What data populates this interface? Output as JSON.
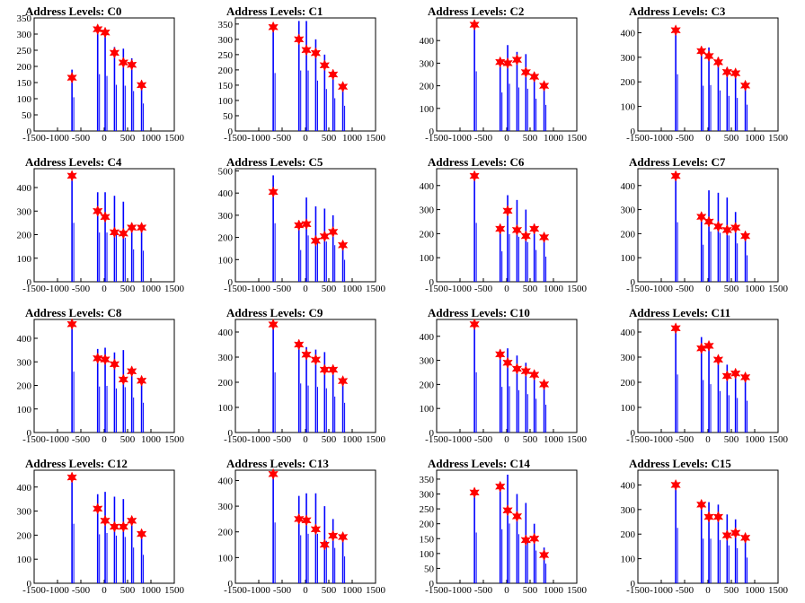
{
  "colors": {
    "histogram": "#0000ff",
    "peak_marker": "#ff0000",
    "axis": "#000000"
  },
  "x_ticks": [
    -1500,
    -1000,
    -500,
    0,
    500,
    1000,
    1500
  ],
  "x_range": [
    -1500,
    1500
  ],
  "chart_data": [
    {
      "type": "bar",
      "title": "Address Levels: C0",
      "ylim": [
        0,
        350
      ],
      "yticks": [
        0,
        50,
        100,
        150,
        200,
        250,
        300,
        350
      ],
      "peaks": [
        {
          "x": -690,
          "y": 165
        },
        {
          "x": -140,
          "y": 315
        },
        {
          "x": 20,
          "y": 305
        },
        {
          "x": 220,
          "y": 242
        },
        {
          "x": 410,
          "y": 212
        },
        {
          "x": 590,
          "y": 205
        },
        {
          "x": 800,
          "y": 142
        }
      ],
      "bars": [
        {
          "x": -690,
          "y": 190
        },
        {
          "x": -140,
          "y": 320
        },
        {
          "x": 20,
          "y": 310
        },
        {
          "x": 220,
          "y": 260
        },
        {
          "x": 410,
          "y": 255
        },
        {
          "x": 590,
          "y": 225
        },
        {
          "x": 800,
          "y": 155
        }
      ]
    },
    {
      "type": "bar",
      "title": "Address Levels: C1",
      "ylim": [
        0,
        370
      ],
      "yticks": [
        0,
        50,
        100,
        150,
        200,
        250,
        300,
        350
      ],
      "peaks": [
        {
          "x": -690,
          "y": 340
        },
        {
          "x": -140,
          "y": 300
        },
        {
          "x": 20,
          "y": 265
        },
        {
          "x": 220,
          "y": 255
        },
        {
          "x": 410,
          "y": 215
        },
        {
          "x": 590,
          "y": 185
        },
        {
          "x": 800,
          "y": 145
        }
      ],
      "bars": [
        {
          "x": -690,
          "y": 345
        },
        {
          "x": -140,
          "y": 360
        },
        {
          "x": 20,
          "y": 360
        },
        {
          "x": 220,
          "y": 300
        },
        {
          "x": 410,
          "y": 250
        },
        {
          "x": 590,
          "y": 195
        },
        {
          "x": 800,
          "y": 150
        }
      ]
    },
    {
      "type": "bar",
      "title": "Address Levels: C2",
      "ylim": [
        0,
        500
      ],
      "yticks": [
        0,
        100,
        200,
        300,
        400
      ],
      "peaks": [
        {
          "x": -690,
          "y": 470
        },
        {
          "x": -140,
          "y": 305
        },
        {
          "x": 20,
          "y": 300
        },
        {
          "x": 220,
          "y": 315
        },
        {
          "x": 410,
          "y": 260
        },
        {
          "x": 590,
          "y": 240
        },
        {
          "x": 800,
          "y": 200
        }
      ],
      "bars": [
        {
          "x": -690,
          "y": 480
        },
        {
          "x": -140,
          "y": 310
        },
        {
          "x": 20,
          "y": 380
        },
        {
          "x": 220,
          "y": 350
        },
        {
          "x": 410,
          "y": 340
        },
        {
          "x": 590,
          "y": 260
        },
        {
          "x": 800,
          "y": 210
        }
      ]
    },
    {
      "type": "bar",
      "title": "Address Levels: C3",
      "ylim": [
        0,
        460
      ],
      "yticks": [
        0,
        100,
        200,
        300,
        400
      ],
      "peaks": [
        {
          "x": -690,
          "y": 410
        },
        {
          "x": -140,
          "y": 325
        },
        {
          "x": 20,
          "y": 305
        },
        {
          "x": 220,
          "y": 280
        },
        {
          "x": 410,
          "y": 240
        },
        {
          "x": 590,
          "y": 235
        },
        {
          "x": 800,
          "y": 185
        }
      ],
      "bars": [
        {
          "x": -690,
          "y": 420
        },
        {
          "x": -140,
          "y": 335
        },
        {
          "x": 20,
          "y": 340
        },
        {
          "x": 220,
          "y": 300
        },
        {
          "x": 410,
          "y": 260
        },
        {
          "x": 590,
          "y": 245
        },
        {
          "x": 800,
          "y": 195
        }
      ]
    },
    {
      "type": "bar",
      "title": "Address Levels: C4",
      "ylim": [
        0,
        480
      ],
      "yticks": [
        0,
        100,
        200,
        300,
        400
      ],
      "peaks": [
        {
          "x": -690,
          "y": 450
        },
        {
          "x": -140,
          "y": 300
        },
        {
          "x": 20,
          "y": 275
        },
        {
          "x": 220,
          "y": 210
        },
        {
          "x": 410,
          "y": 205
        },
        {
          "x": 590,
          "y": 230
        },
        {
          "x": 800,
          "y": 230
        }
      ],
      "bars": [
        {
          "x": -690,
          "y": 455
        },
        {
          "x": -140,
          "y": 380
        },
        {
          "x": 20,
          "y": 380
        },
        {
          "x": 220,
          "y": 365
        },
        {
          "x": 410,
          "y": 340
        },
        {
          "x": 590,
          "y": 250
        },
        {
          "x": 800,
          "y": 240
        }
      ]
    },
    {
      "type": "bar",
      "title": "Address Levels: C5",
      "ylim": [
        0,
        510
      ],
      "yticks": [
        0,
        100,
        200,
        300,
        400,
        500
      ],
      "peaks": [
        {
          "x": -690,
          "y": 405
        },
        {
          "x": -140,
          "y": 255
        },
        {
          "x": 20,
          "y": 260
        },
        {
          "x": 220,
          "y": 185
        },
        {
          "x": 410,
          "y": 205
        },
        {
          "x": 590,
          "y": 225
        },
        {
          "x": 800,
          "y": 165
        }
      ],
      "bars": [
        {
          "x": -690,
          "y": 480
        },
        {
          "x": -140,
          "y": 260
        },
        {
          "x": 20,
          "y": 380
        },
        {
          "x": 220,
          "y": 340
        },
        {
          "x": 410,
          "y": 330
        },
        {
          "x": 590,
          "y": 300
        },
        {
          "x": 800,
          "y": 180
        }
      ]
    },
    {
      "type": "bar",
      "title": "Address Levels: C6",
      "ylim": [
        0,
        470
      ],
      "yticks": [
        0,
        100,
        200,
        300,
        400
      ],
      "peaks": [
        {
          "x": -690,
          "y": 440
        },
        {
          "x": -140,
          "y": 220
        },
        {
          "x": 20,
          "y": 295
        },
        {
          "x": 220,
          "y": 215
        },
        {
          "x": 410,
          "y": 190
        },
        {
          "x": 590,
          "y": 220
        },
        {
          "x": 800,
          "y": 185
        }
      ],
      "bars": [
        {
          "x": -690,
          "y": 445
        },
        {
          "x": -140,
          "y": 230
        },
        {
          "x": 20,
          "y": 360
        },
        {
          "x": 220,
          "y": 340
        },
        {
          "x": 410,
          "y": 300
        },
        {
          "x": 590,
          "y": 240
        },
        {
          "x": 800,
          "y": 190
        }
      ]
    },
    {
      "type": "bar",
      "title": "Address Levels: C7",
      "ylim": [
        0,
        470
      ],
      "yticks": [
        0,
        100,
        200,
        300,
        400
      ],
      "peaks": [
        {
          "x": -690,
          "y": 440
        },
        {
          "x": -140,
          "y": 270
        },
        {
          "x": 20,
          "y": 250
        },
        {
          "x": 220,
          "y": 230
        },
        {
          "x": 410,
          "y": 215
        },
        {
          "x": 590,
          "y": 225
        },
        {
          "x": 800,
          "y": 190
        }
      ],
      "bars": [
        {
          "x": -690,
          "y": 450
        },
        {
          "x": -140,
          "y": 280
        },
        {
          "x": 20,
          "y": 380
        },
        {
          "x": 220,
          "y": 370
        },
        {
          "x": 410,
          "y": 350
        },
        {
          "x": 590,
          "y": 290
        },
        {
          "x": 800,
          "y": 200
        }
      ]
    },
    {
      "type": "bar",
      "title": "Address Levels: C8",
      "ylim": [
        0,
        480
      ],
      "yticks": [
        0,
        100,
        200,
        300,
        400
      ],
      "peaks": [
        {
          "x": -690,
          "y": 460
        },
        {
          "x": -140,
          "y": 315
        },
        {
          "x": 20,
          "y": 310
        },
        {
          "x": 220,
          "y": 290
        },
        {
          "x": 410,
          "y": 225
        },
        {
          "x": 590,
          "y": 260
        },
        {
          "x": 800,
          "y": 220
        }
      ],
      "bars": [
        {
          "x": -690,
          "y": 470
        },
        {
          "x": -140,
          "y": 355
        },
        {
          "x": 20,
          "y": 360
        },
        {
          "x": 220,
          "y": 340
        },
        {
          "x": 410,
          "y": 350
        },
        {
          "x": 590,
          "y": 270
        },
        {
          "x": 800,
          "y": 230
        }
      ]
    },
    {
      "type": "bar",
      "title": "Address Levels: C9",
      "ylim": [
        0,
        450
      ],
      "yticks": [
        0,
        100,
        200,
        300,
        400
      ],
      "peaks": [
        {
          "x": -690,
          "y": 430
        },
        {
          "x": -140,
          "y": 350
        },
        {
          "x": 20,
          "y": 310
        },
        {
          "x": 220,
          "y": 290
        },
        {
          "x": 410,
          "y": 250
        },
        {
          "x": 590,
          "y": 250
        },
        {
          "x": 800,
          "y": 205
        }
      ],
      "bars": [
        {
          "x": -690,
          "y": 435
        },
        {
          "x": -140,
          "y": 355
        },
        {
          "x": 20,
          "y": 340
        },
        {
          "x": 220,
          "y": 330
        },
        {
          "x": 410,
          "y": 320
        },
        {
          "x": 590,
          "y": 260
        },
        {
          "x": 800,
          "y": 215
        }
      ]
    },
    {
      "type": "bar",
      "title": "Address Levels: C10",
      "ylim": [
        0,
        470
      ],
      "yticks": [
        0,
        100,
        200,
        300,
        400
      ],
      "peaks": [
        {
          "x": -690,
          "y": 450
        },
        {
          "x": -140,
          "y": 325
        },
        {
          "x": 20,
          "y": 290
        },
        {
          "x": 220,
          "y": 265
        },
        {
          "x": 410,
          "y": 255
        },
        {
          "x": 590,
          "y": 240
        },
        {
          "x": 800,
          "y": 200
        }
      ],
      "bars": [
        {
          "x": -690,
          "y": 455
        },
        {
          "x": -140,
          "y": 345
        },
        {
          "x": 20,
          "y": 350
        },
        {
          "x": 220,
          "y": 320
        },
        {
          "x": 410,
          "y": 290
        },
        {
          "x": 590,
          "y": 255
        },
        {
          "x": 800,
          "y": 210
        }
      ]
    },
    {
      "type": "bar",
      "title": "Address Levels: C11",
      "ylim": [
        0,
        450
      ],
      "yticks": [
        0,
        100,
        200,
        300,
        400
      ],
      "peaks": [
        {
          "x": -690,
          "y": 415
        },
        {
          "x": -140,
          "y": 335
        },
        {
          "x": 20,
          "y": 345
        },
        {
          "x": 220,
          "y": 290
        },
        {
          "x": 410,
          "y": 225
        },
        {
          "x": 590,
          "y": 235
        },
        {
          "x": 800,
          "y": 220
        }
      ],
      "bars": [
        {
          "x": -690,
          "y": 420
        },
        {
          "x": -140,
          "y": 380
        },
        {
          "x": 20,
          "y": 350
        },
        {
          "x": 220,
          "y": 300
        },
        {
          "x": 410,
          "y": 270
        },
        {
          "x": 590,
          "y": 250
        },
        {
          "x": 800,
          "y": 230
        }
      ]
    },
    {
      "type": "bar",
      "title": "Address Levels: C12",
      "ylim": [
        0,
        470
      ],
      "yticks": [
        0,
        100,
        200,
        300,
        400
      ],
      "peaks": [
        {
          "x": -690,
          "y": 440
        },
        {
          "x": -140,
          "y": 310
        },
        {
          "x": 20,
          "y": 260
        },
        {
          "x": 220,
          "y": 235
        },
        {
          "x": 410,
          "y": 235
        },
        {
          "x": 590,
          "y": 260
        },
        {
          "x": 800,
          "y": 205
        }
      ],
      "bars": [
        {
          "x": -690,
          "y": 450
        },
        {
          "x": -140,
          "y": 370
        },
        {
          "x": 20,
          "y": 380
        },
        {
          "x": 220,
          "y": 360
        },
        {
          "x": 410,
          "y": 350
        },
        {
          "x": 590,
          "y": 270
        },
        {
          "x": 800,
          "y": 215
        }
      ]
    },
    {
      "type": "bar",
      "title": "Address Levels: C13",
      "ylim": [
        0,
        440
      ],
      "yticks": [
        0,
        100,
        200,
        300,
        400
      ],
      "peaks": [
        {
          "x": -690,
          "y": 425
        },
        {
          "x": -140,
          "y": 250
        },
        {
          "x": 20,
          "y": 245
        },
        {
          "x": 220,
          "y": 210
        },
        {
          "x": 410,
          "y": 150
        },
        {
          "x": 590,
          "y": 185
        },
        {
          "x": 800,
          "y": 180
        }
      ],
      "bars": [
        {
          "x": -690,
          "y": 430
        },
        {
          "x": -140,
          "y": 340
        },
        {
          "x": 20,
          "y": 350
        },
        {
          "x": 220,
          "y": 350
        },
        {
          "x": 410,
          "y": 300
        },
        {
          "x": 590,
          "y": 250
        },
        {
          "x": 800,
          "y": 190
        }
      ]
    },
    {
      "type": "bar",
      "title": "Address Levels: C14",
      "ylim": [
        0,
        380
      ],
      "yticks": [
        0,
        50,
        100,
        150,
        200,
        250,
        300,
        350
      ],
      "peaks": [
        {
          "x": -690,
          "y": 305
        },
        {
          "x": -140,
          "y": 325
        },
        {
          "x": 20,
          "y": 245
        },
        {
          "x": 220,
          "y": 225
        },
        {
          "x": 410,
          "y": 145
        },
        {
          "x": 590,
          "y": 150
        },
        {
          "x": 800,
          "y": 95
        }
      ],
      "bars": [
        {
          "x": -690,
          "y": 310
        },
        {
          "x": -140,
          "y": 330
        },
        {
          "x": 20,
          "y": 365
        },
        {
          "x": 220,
          "y": 300
        },
        {
          "x": 410,
          "y": 270
        },
        {
          "x": 590,
          "y": 200
        },
        {
          "x": 800,
          "y": 120
        }
      ]
    },
    {
      "type": "bar",
      "title": "Address Levels: C15",
      "ylim": [
        0,
        460
      ],
      "yticks": [
        0,
        100,
        200,
        300,
        400
      ],
      "peaks": [
        {
          "x": -690,
          "y": 400
        },
        {
          "x": -140,
          "y": 320
        },
        {
          "x": 20,
          "y": 270
        },
        {
          "x": 220,
          "y": 270
        },
        {
          "x": 410,
          "y": 195
        },
        {
          "x": 590,
          "y": 205
        },
        {
          "x": 800,
          "y": 185
        }
      ],
      "bars": [
        {
          "x": -690,
          "y": 410
        },
        {
          "x": -140,
          "y": 330
        },
        {
          "x": 20,
          "y": 330
        },
        {
          "x": 220,
          "y": 320
        },
        {
          "x": 410,
          "y": 280
        },
        {
          "x": 590,
          "y": 260
        },
        {
          "x": 800,
          "y": 190
        }
      ]
    }
  ]
}
